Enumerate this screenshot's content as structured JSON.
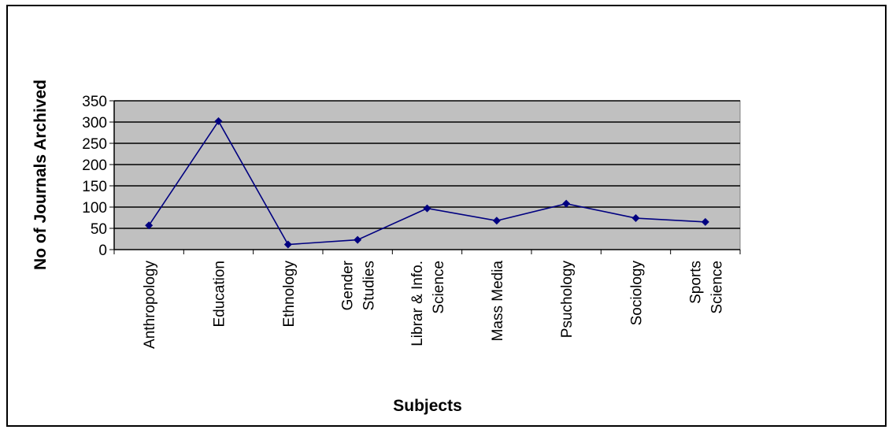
{
  "chart_data": {
    "type": "line",
    "title": "",
    "xlabel": "Subjects",
    "ylabel": "No of Journals Archived",
    "categories": [
      [
        "Anthropology"
      ],
      [
        "Education"
      ],
      [
        "Ethnology"
      ],
      [
        "Gender",
        "Studies"
      ],
      [
        "Librar & Info.",
        "Science"
      ],
      [
        "Mass Media"
      ],
      [
        "Psuchology"
      ],
      [
        "Sociology"
      ],
      [
        "Sports",
        "Science"
      ]
    ],
    "series": [
      {
        "values": [
          57,
          302,
          12,
          23,
          97,
          68,
          108,
          74,
          65
        ]
      }
    ],
    "ylim": [
      0,
      350
    ],
    "yticks": [
      0,
      50,
      100,
      150,
      200,
      250,
      300,
      350
    ],
    "grid": true,
    "legend": "none",
    "colors": {
      "plot_background": "#c0c0c0",
      "line": "#000080",
      "marker": "#000080",
      "gridline": "#000000"
    }
  }
}
